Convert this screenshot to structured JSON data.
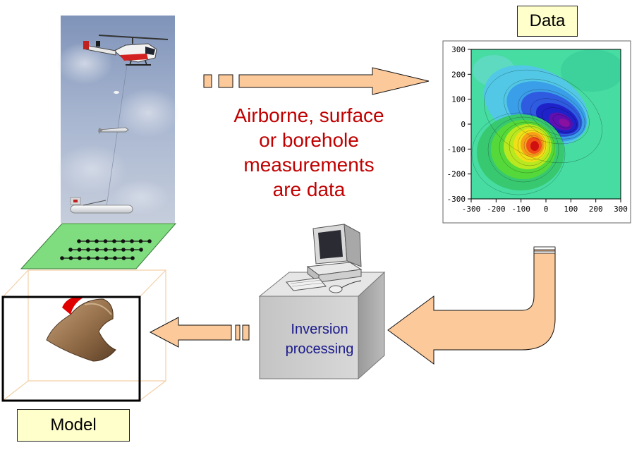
{
  "labels": {
    "data": "Data",
    "model": "Model"
  },
  "caption": {
    "lines": [
      "Airborne, surface",
      "or borehole",
      "measurements",
      "are data"
    ]
  },
  "processor": {
    "lines": [
      "Inversion",
      "processing"
    ]
  },
  "colors": {
    "caption_red": "#c00000",
    "processing_blue": "#1a1a8c",
    "arrow_fill": "#fcc99a",
    "label_bg": "#ffffcc",
    "survey_green": "#7fdc7f",
    "model_body": "#a07850",
    "model_cap": "#e00000"
  },
  "icons": {
    "helicopter": "helicopter-icon",
    "computer": "computer-icon",
    "server": "server-box"
  },
  "data_plot": {
    "x_ticks": [
      "-300",
      "-200",
      "-100",
      "0",
      "100",
      "200",
      "300"
    ],
    "y_ticks": [
      "300",
      "200",
      "100",
      "0",
      "-100",
      "-200",
      "-300"
    ],
    "xlim": [
      -300,
      300
    ],
    "ylim": [
      -300,
      300
    ],
    "type": "heatmap",
    "anomalies": [
      {
        "kind": "high",
        "x": -50,
        "y": -90,
        "color": "red"
      },
      {
        "kind": "low",
        "x": 60,
        "y": 0,
        "color": "purple"
      }
    ]
  }
}
